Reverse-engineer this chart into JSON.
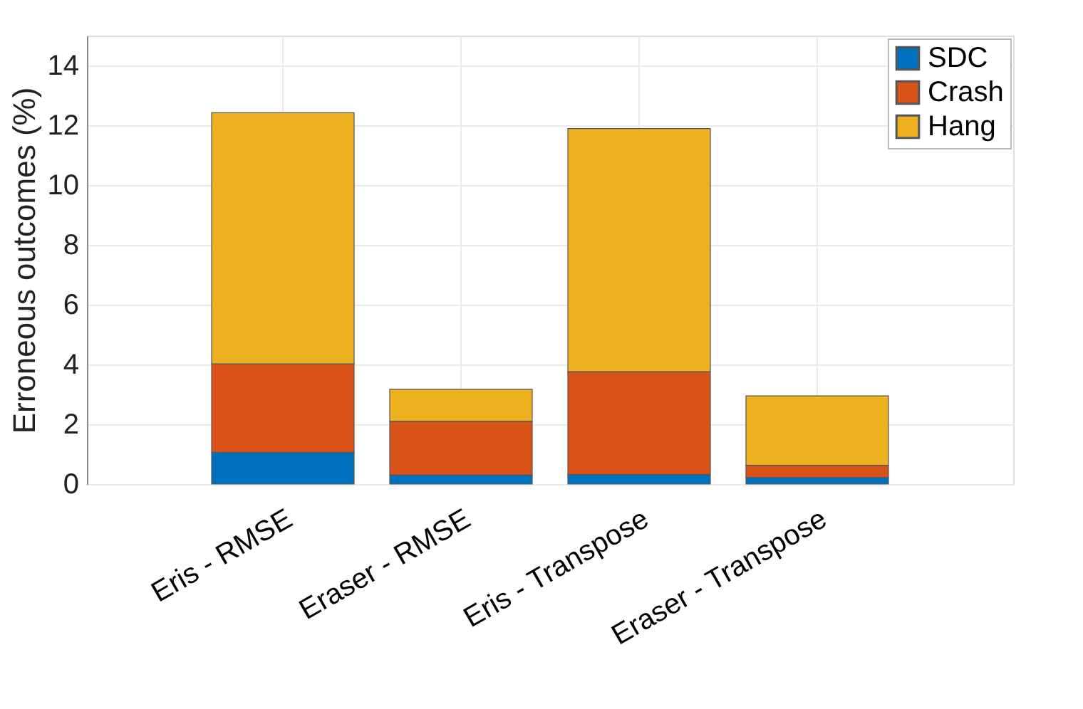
{
  "chart_data": {
    "type": "bar",
    "stacked": true,
    "ylabel": "Erroneous outcomes (%)",
    "categories": [
      "Eris - RMSE",
      "Eraser - RMSE",
      "Eris - Transpose",
      "Eraser - Transpose"
    ],
    "series": [
      {
        "name": "SDC",
        "color": "#0072bd",
        "values": [
          1.06,
          0.3,
          0.32,
          0.22
        ]
      },
      {
        "name": "Crash",
        "color": "#d95319",
        "values": [
          2.96,
          1.8,
          3.44,
          0.41
        ]
      },
      {
        "name": "Hang",
        "color": "#edb120",
        "values": [
          8.4,
          1.07,
          8.13,
          2.32
        ]
      }
    ],
    "ylim": [
      0,
      15
    ],
    "yticks": [
      0,
      2,
      4,
      6,
      8,
      10,
      12,
      14
    ],
    "grid": true,
    "legend": "top right"
  }
}
